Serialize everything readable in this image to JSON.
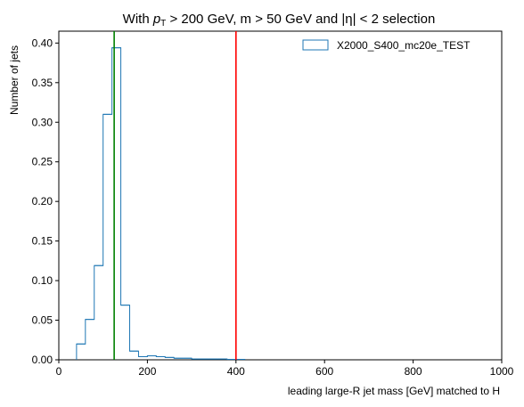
{
  "chart_data": {
    "type": "histogram",
    "title": {
      "prefix": "With ",
      "pt_main": "p",
      "pt_sub": "T",
      "middle": " > 200 GeV, m > 50 GeV and ",
      "eta": "|η| < 2",
      "suffix": " selection"
    },
    "xlabel": "leading large-R jet mass [GeV] matched to H",
    "ylabel": "Number of jets",
    "xlim": [
      0,
      1000
    ],
    "ylim": [
      0,
      0.415
    ],
    "xticks": [
      0,
      200,
      400,
      600,
      800,
      1000
    ],
    "xtick_labels": [
      "0",
      "200",
      "400",
      "600",
      "800",
      "1000"
    ],
    "yticks": [
      0.0,
      0.05,
      0.1,
      0.15,
      0.2,
      0.25,
      0.3,
      0.35,
      0.4
    ],
    "ytick_labels": [
      "0.00",
      "0.05",
      "0.10",
      "0.15",
      "0.20",
      "0.25",
      "0.30",
      "0.35",
      "0.40"
    ],
    "series": [
      {
        "name": "X2000_S400_mc20e_TEST",
        "color": "#1f77b4",
        "bin_edges": [
          40,
          60,
          80,
          100,
          120,
          140,
          160,
          180,
          200,
          220,
          240,
          260,
          280,
          300,
          320,
          340,
          360,
          380,
          400,
          420
        ],
        "values": [
          0.02,
          0.051,
          0.119,
          0.31,
          0.394,
          0.069,
          0.011,
          0.004,
          0.005,
          0.004,
          0.003,
          0.002,
          0.002,
          0.001,
          0.001,
          0.001,
          0.001,
          0.0005,
          0.0005
        ]
      }
    ],
    "vertical_lines": [
      {
        "x": 125,
        "color": "#008000"
      },
      {
        "x": 400,
        "color": "#ff0000"
      }
    ],
    "legend_position": "top-right"
  }
}
